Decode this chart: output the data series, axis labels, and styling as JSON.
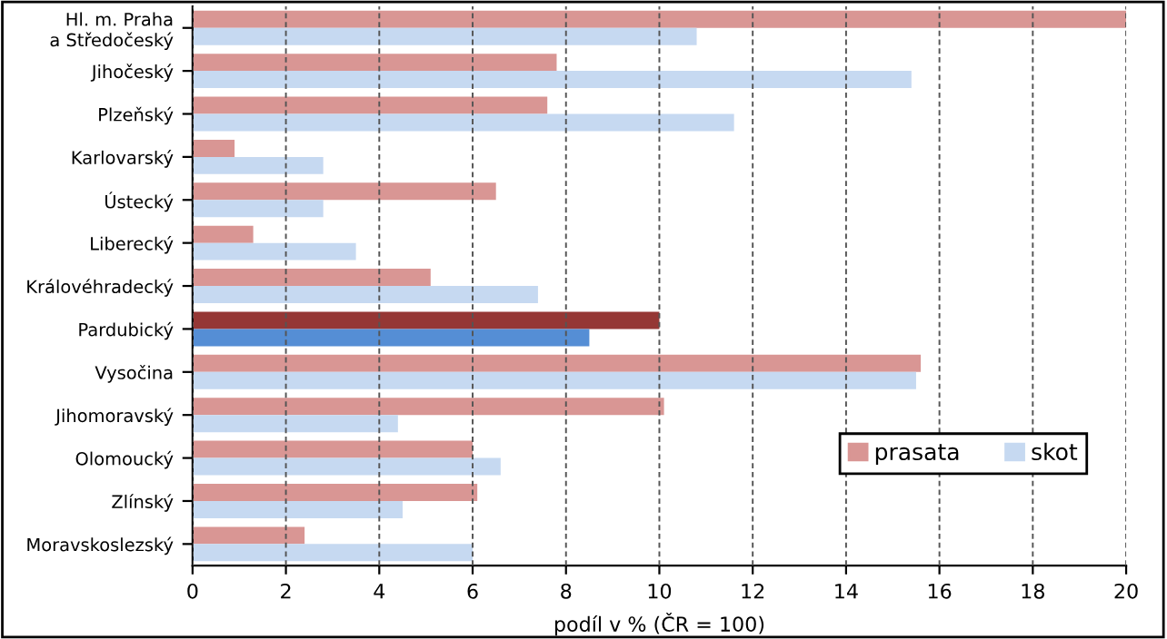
{
  "chart_data": {
    "type": "bar",
    "orientation": "horizontal",
    "xlabel": "podíl v % (ČR = 100)",
    "categories": [
      "Hl. m. Praha\na Středočeský",
      "Jihočeský",
      "Plzeňský",
      "Karlovarský",
      "Ústecký",
      "Liberecký",
      "Královéhradecký",
      "Pardubický",
      "Vysočina",
      "Jihomoravský",
      "Olomoucký",
      "Zlínský",
      "Moravskoslezský"
    ],
    "series": [
      {
        "name": "prasata",
        "color": "#d99694",
        "colors": [
          "#d99694",
          "#d99694",
          "#d99694",
          "#d99694",
          "#d99694",
          "#d99694",
          "#d99694",
          "#953735",
          "#d99694",
          "#d99694",
          "#d99694",
          "#d99694",
          "#d99694"
        ],
        "values": [
          20.0,
          7.8,
          7.6,
          0.9,
          6.5,
          1.3,
          5.1,
          10.0,
          15.6,
          10.1,
          6.0,
          6.1,
          2.4
        ]
      },
      {
        "name": "skot",
        "color": "#c6d9f1",
        "colors": [
          "#c6d9f1",
          "#c6d9f1",
          "#c6d9f1",
          "#c6d9f1",
          "#c6d9f1",
          "#c6d9f1",
          "#c6d9f1",
          "#558ed5",
          "#c6d9f1",
          "#c6d9f1",
          "#c6d9f1",
          "#c6d9f1",
          "#c6d9f1"
        ],
        "values": [
          10.8,
          15.4,
          11.6,
          2.8,
          2.8,
          3.5,
          7.4,
          8.5,
          15.5,
          4.4,
          6.6,
          4.5,
          6.0
        ]
      }
    ],
    "xlim": [
      0,
      20
    ],
    "xticks": [
      0,
      2,
      4,
      6,
      8,
      10,
      12,
      14,
      16,
      18,
      20
    ],
    "grid": "x",
    "legend": "right"
  }
}
